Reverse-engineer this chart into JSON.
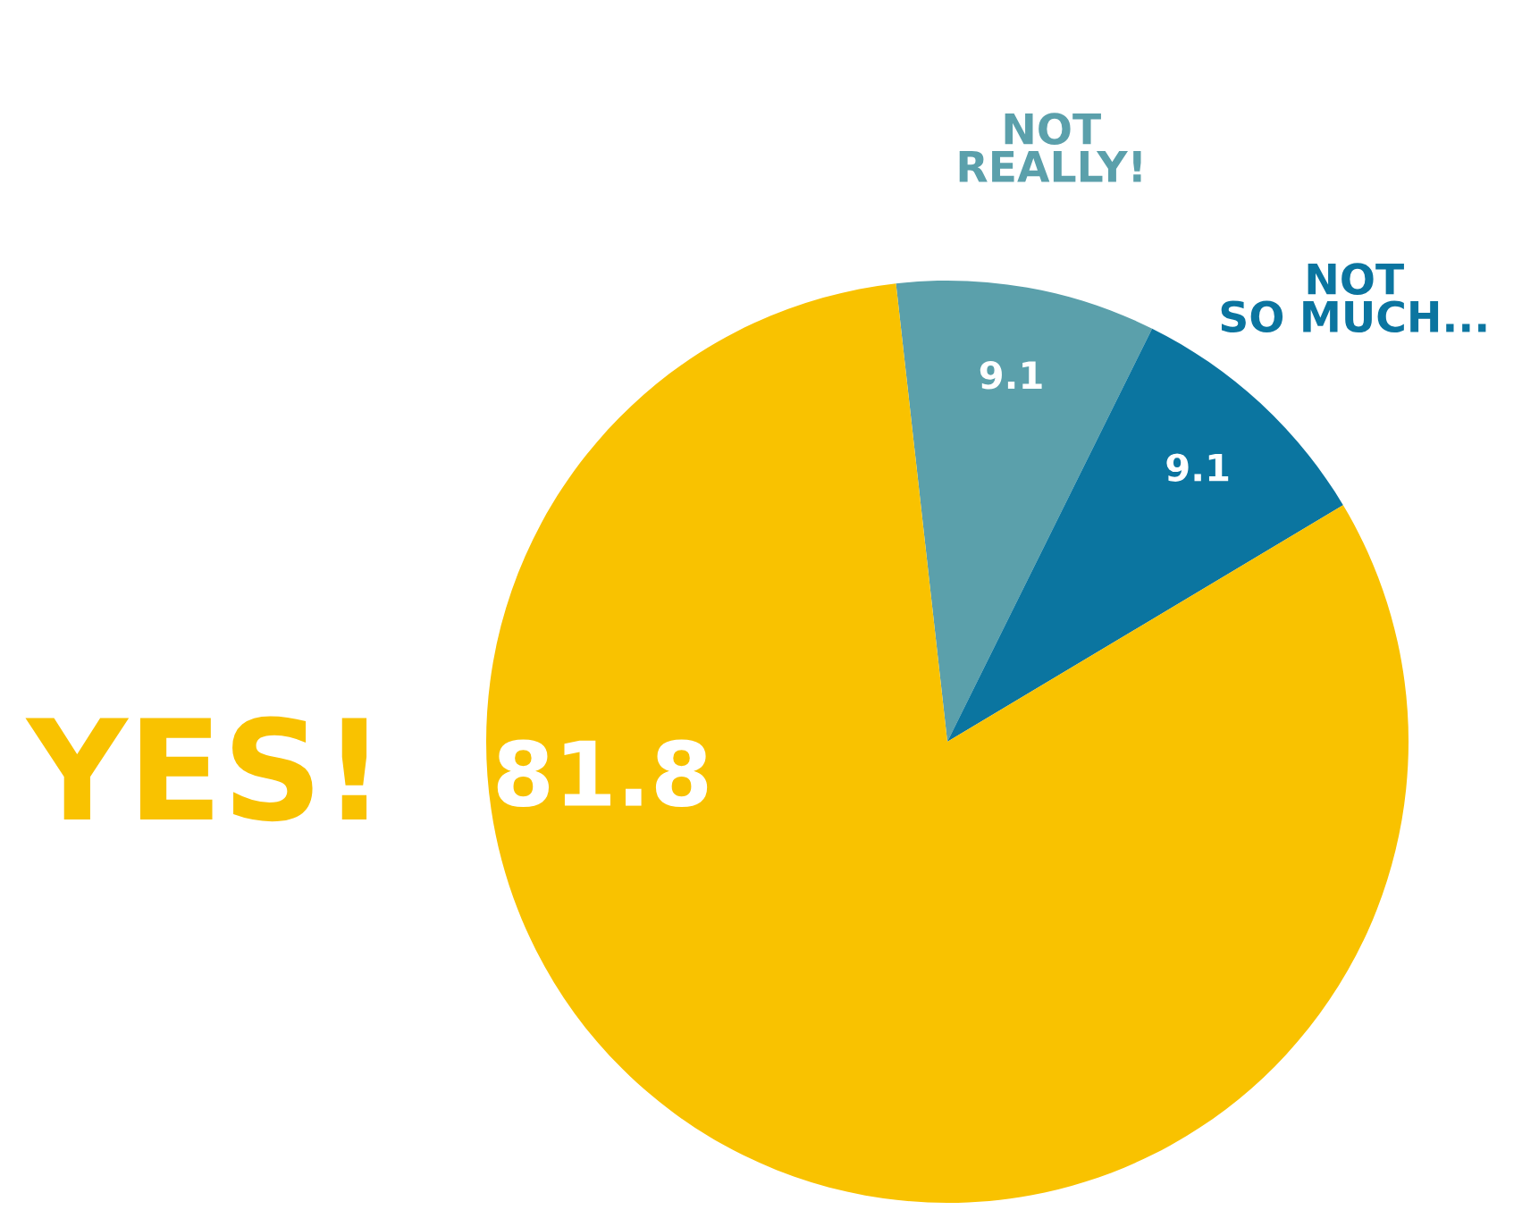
{
  "chart_data": {
    "type": "pie",
    "categories": [
      "NOT\nREALLY!",
      "NOT\nSO MUCH...",
      "YES!"
    ],
    "values": [
      9.1,
      9.1,
      81.8
    ],
    "colors": [
      "#5ba0ab",
      "#0b75a0",
      "#f9c200"
    ],
    "data_labels": true
  }
}
